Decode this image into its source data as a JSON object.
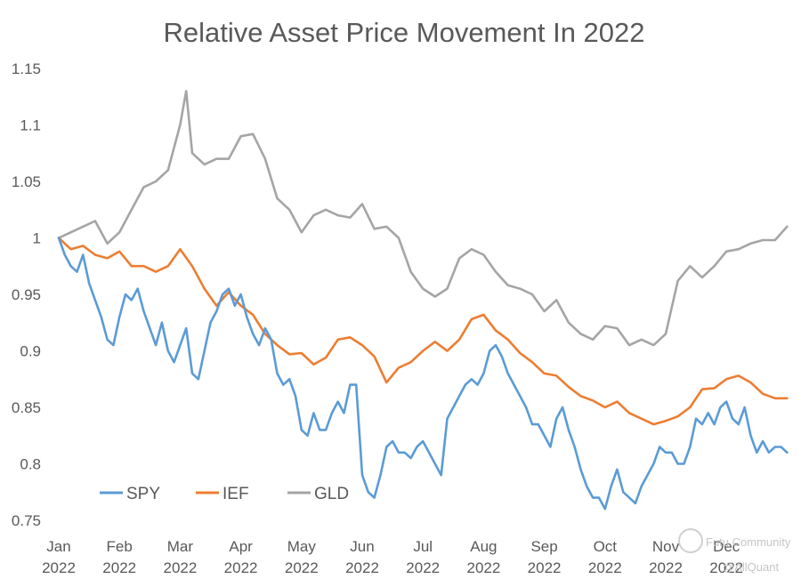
{
  "chart_data": {
    "type": "line",
    "title": "Relative Asset Price Movement In 2022",
    "xlabel": "",
    "ylabel": "",
    "ylim": [
      0.75,
      1.15
    ],
    "yticks": [
      "0.75",
      "0.8",
      "0.85",
      "0.9",
      "0.95",
      "1",
      "1.05",
      "1.1",
      "1.15"
    ],
    "xticks": [
      {
        "month": "Jan",
        "year": "2022"
      },
      {
        "month": "Feb",
        "year": "2022"
      },
      {
        "month": "Mar",
        "year": "2022"
      },
      {
        "month": "Apr",
        "year": "2022"
      },
      {
        "month": "May",
        "year": "2022"
      },
      {
        "month": "Jun",
        "year": "2022"
      },
      {
        "month": "Jul",
        "year": "2022"
      },
      {
        "month": "Aug",
        "year": "2022"
      },
      {
        "month": "Sep",
        "year": "2022"
      },
      {
        "month": "Oct",
        "year": "2022"
      },
      {
        "month": "Nov",
        "year": "2022"
      },
      {
        "month": "Dec",
        "year": "2022"
      }
    ],
    "grid": false,
    "legend": "bottom-left",
    "x_unit": "months since Jan 1 2022",
    "series": [
      {
        "name": "SPY",
        "color": "#5B9BD5",
        "x": [
          0,
          0.1,
          0.2,
          0.3,
          0.4,
          0.5,
          0.6,
          0.7,
          0.8,
          0.9,
          1.0,
          1.1,
          1.2,
          1.3,
          1.4,
          1.5,
          1.6,
          1.7,
          1.8,
          1.9,
          2.0,
          2.1,
          2.2,
          2.3,
          2.4,
          2.5,
          2.6,
          2.7,
          2.8,
          2.9,
          3.0,
          3.1,
          3.2,
          3.3,
          3.4,
          3.5,
          3.6,
          3.7,
          3.8,
          3.9,
          4.0,
          4.1,
          4.2,
          4.3,
          4.4,
          4.5,
          4.6,
          4.7,
          4.8,
          4.9,
          5.0,
          5.1,
          5.2,
          5.3,
          5.4,
          5.5,
          5.6,
          5.7,
          5.8,
          5.9,
          6.0,
          6.1,
          6.2,
          6.3,
          6.4,
          6.5,
          6.6,
          6.7,
          6.8,
          6.9,
          7.0,
          7.1,
          7.2,
          7.3,
          7.4,
          7.5,
          7.6,
          7.7,
          7.8,
          7.9,
          8.0,
          8.1,
          8.2,
          8.3,
          8.4,
          8.5,
          8.6,
          8.7,
          8.8,
          8.9,
          9.0,
          9.1,
          9.2,
          9.3,
          9.4,
          9.5,
          9.6,
          9.7,
          9.8,
          9.9,
          10.0,
          10.1,
          10.2,
          10.3,
          10.4,
          10.5,
          10.6,
          10.7,
          10.8,
          10.9,
          11.0,
          11.1,
          11.2,
          11.3,
          11.4,
          11.5,
          11.6,
          11.7,
          11.8,
          11.9,
          12.0
        ],
        "values": [
          1.0,
          0.985,
          0.975,
          0.97,
          0.985,
          0.96,
          0.945,
          0.93,
          0.91,
          0.905,
          0.93,
          0.95,
          0.945,
          0.955,
          0.935,
          0.92,
          0.905,
          0.925,
          0.9,
          0.89,
          0.905,
          0.92,
          0.88,
          0.875,
          0.9,
          0.925,
          0.935,
          0.95,
          0.955,
          0.94,
          0.95,
          0.93,
          0.915,
          0.905,
          0.92,
          0.91,
          0.88,
          0.87,
          0.875,
          0.86,
          0.83,
          0.825,
          0.845,
          0.83,
          0.83,
          0.845,
          0.855,
          0.845,
          0.87,
          0.87,
          0.79,
          0.775,
          0.77,
          0.79,
          0.815,
          0.82,
          0.81,
          0.81,
          0.805,
          0.815,
          0.82,
          0.81,
          0.8,
          0.79,
          0.84,
          0.85,
          0.86,
          0.87,
          0.875,
          0.87,
          0.88,
          0.9,
          0.905,
          0.895,
          0.88,
          0.87,
          0.86,
          0.85,
          0.835,
          0.835,
          0.825,
          0.815,
          0.84,
          0.85,
          0.83,
          0.815,
          0.795,
          0.78,
          0.77,
          0.77,
          0.76,
          0.78,
          0.795,
          0.775,
          0.77,
          0.765,
          0.78,
          0.79,
          0.8,
          0.815,
          0.81,
          0.81,
          0.8,
          0.8,
          0.815,
          0.84,
          0.835,
          0.845,
          0.835,
          0.85,
          0.855,
          0.84,
          0.835,
          0.85,
          0.825,
          0.81,
          0.82,
          0.81,
          0.815,
          0.815,
          0.81
        ]
      },
      {
        "name": "IEF",
        "color": "#ED7D31",
        "x": [
          0,
          0.2,
          0.4,
          0.6,
          0.8,
          1.0,
          1.2,
          1.4,
          1.6,
          1.8,
          2.0,
          2.2,
          2.4,
          2.6,
          2.8,
          3.0,
          3.2,
          3.4,
          3.6,
          3.8,
          4.0,
          4.2,
          4.4,
          4.6,
          4.8,
          5.0,
          5.2,
          5.4,
          5.6,
          5.8,
          6.0,
          6.2,
          6.4,
          6.6,
          6.8,
          7.0,
          7.2,
          7.4,
          7.6,
          7.8,
          8.0,
          8.2,
          8.4,
          8.6,
          8.8,
          9.0,
          9.2,
          9.4,
          9.6,
          9.8,
          10.0,
          10.2,
          10.4,
          10.6,
          10.8,
          11.0,
          11.2,
          11.4,
          11.6,
          11.8,
          12.0
        ],
        "values": [
          1.0,
          0.99,
          0.993,
          0.985,
          0.982,
          0.988,
          0.975,
          0.975,
          0.97,
          0.975,
          0.99,
          0.975,
          0.955,
          0.94,
          0.952,
          0.94,
          0.932,
          0.915,
          0.905,
          0.897,
          0.898,
          0.888,
          0.894,
          0.91,
          0.912,
          0.905,
          0.895,
          0.872,
          0.885,
          0.89,
          0.9,
          0.908,
          0.9,
          0.91,
          0.928,
          0.932,
          0.918,
          0.91,
          0.898,
          0.89,
          0.88,
          0.878,
          0.868,
          0.86,
          0.856,
          0.85,
          0.855,
          0.845,
          0.84,
          0.835,
          0.838,
          0.842,
          0.85,
          0.866,
          0.867,
          0.875,
          0.878,
          0.872,
          0.862,
          0.858,
          0.858
        ]
      },
      {
        "name": "GLD",
        "color": "#A5A5A5",
        "x": [
          0,
          0.2,
          0.4,
          0.6,
          0.8,
          1.0,
          1.2,
          1.4,
          1.6,
          1.8,
          2.0,
          2.1,
          2.2,
          2.4,
          2.6,
          2.8,
          3.0,
          3.2,
          3.4,
          3.6,
          3.8,
          4.0,
          4.2,
          4.4,
          4.6,
          4.8,
          5.0,
          5.2,
          5.4,
          5.6,
          5.8,
          6.0,
          6.2,
          6.4,
          6.6,
          6.8,
          7.0,
          7.2,
          7.4,
          7.6,
          7.8,
          8.0,
          8.2,
          8.4,
          8.6,
          8.8,
          9.0,
          9.2,
          9.4,
          9.6,
          9.8,
          10.0,
          10.2,
          10.4,
          10.6,
          10.8,
          11.0,
          11.2,
          11.4,
          11.6,
          11.8,
          12.0
        ],
        "values": [
          1.0,
          1.005,
          1.01,
          1.015,
          0.995,
          1.005,
          1.025,
          1.045,
          1.05,
          1.06,
          1.1,
          1.13,
          1.075,
          1.065,
          1.07,
          1.07,
          1.09,
          1.092,
          1.07,
          1.035,
          1.025,
          1.005,
          1.02,
          1.025,
          1.02,
          1.018,
          1.03,
          1.008,
          1.01,
          1.0,
          0.97,
          0.955,
          0.948,
          0.955,
          0.982,
          0.99,
          0.985,
          0.97,
          0.958,
          0.955,
          0.95,
          0.935,
          0.945,
          0.925,
          0.915,
          0.91,
          0.922,
          0.92,
          0.905,
          0.91,
          0.905,
          0.915,
          0.962,
          0.975,
          0.965,
          0.975,
          0.988,
          0.99,
          0.995,
          0.998,
          0.998,
          1.01
        ]
      }
    ]
  },
  "watermark": {
    "line1": "Futu Community",
    "line2": "@AllQuant"
  }
}
